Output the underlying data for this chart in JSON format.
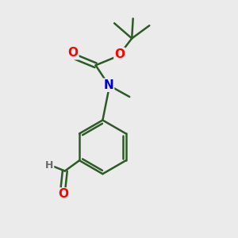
{
  "background_color": "#ebebeb",
  "bond_color": "#2d5a27",
  "bond_width": 1.8,
  "atom_colors": {
    "O": "#ff0000",
    "N": "#0000cd",
    "C": "#2d5a27",
    "H": "#6a6a6a"
  },
  "figsize": [
    3.0,
    3.0
  ],
  "dpi": 100
}
